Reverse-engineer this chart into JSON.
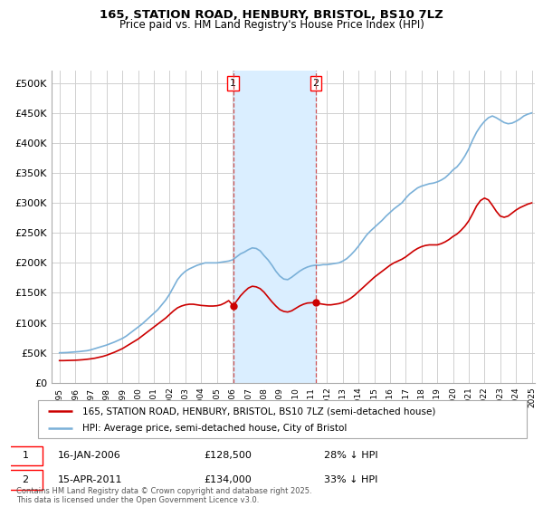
{
  "title": "165, STATION ROAD, HENBURY, BRISTOL, BS10 7LZ",
  "subtitle": "Price paid vs. HM Land Registry's House Price Index (HPI)",
  "ylim": [
    0,
    520000
  ],
  "yticks": [
    0,
    50000,
    100000,
    150000,
    200000,
    250000,
    300000,
    350000,
    400000,
    450000,
    500000
  ],
  "ytick_labels": [
    "£0",
    "£50K",
    "£100K",
    "£150K",
    "£200K",
    "£250K",
    "£300K",
    "£350K",
    "£400K",
    "£450K",
    "£500K"
  ],
  "hpi_color": "#7ab0d8",
  "price_color": "#cc0000",
  "grid_color": "#d0d0d0",
  "shaded_color": "#daeeff",
  "marker1_date": "16-JAN-2006",
  "marker1_price": 128500,
  "marker1_hpi_pct": "28%",
  "marker2_date": "15-APR-2011",
  "marker2_price": 134000,
  "marker2_hpi_pct": "33%",
  "footer": "Contains HM Land Registry data © Crown copyright and database right 2025.\nThis data is licensed under the Open Government Licence v3.0.",
  "legend_line1": "165, STATION ROAD, HENBURY, BRISTOL, BS10 7LZ (semi-detached house)",
  "legend_line2": "HPI: Average price, semi-detached house, City of Bristol",
  "x_start_year": 1995,
  "x_end_year": 2025,
  "hpi_data": [
    [
      1995.0,
      50000
    ],
    [
      1995.25,
      50200
    ],
    [
      1995.5,
      50500
    ],
    [
      1995.75,
      51000
    ],
    [
      1996.0,
      51500
    ],
    [
      1996.25,
      52000
    ],
    [
      1996.5,
      52800
    ],
    [
      1996.75,
      53500
    ],
    [
      1997.0,
      55000
    ],
    [
      1997.25,
      57000
    ],
    [
      1997.5,
      59000
    ],
    [
      1997.75,
      61000
    ],
    [
      1998.0,
      63000
    ],
    [
      1998.25,
      65500
    ],
    [
      1998.5,
      68000
    ],
    [
      1998.75,
      71000
    ],
    [
      1999.0,
      74000
    ],
    [
      1999.25,
      78000
    ],
    [
      1999.5,
      83000
    ],
    [
      1999.75,
      88000
    ],
    [
      2000.0,
      93000
    ],
    [
      2000.25,
      98000
    ],
    [
      2000.5,
      104000
    ],
    [
      2000.75,
      110000
    ],
    [
      2001.0,
      116000
    ],
    [
      2001.25,
      122000
    ],
    [
      2001.5,
      130000
    ],
    [
      2001.75,
      138000
    ],
    [
      2002.0,
      148000
    ],
    [
      2002.25,
      160000
    ],
    [
      2002.5,
      172000
    ],
    [
      2002.75,
      180000
    ],
    [
      2003.0,
      186000
    ],
    [
      2003.25,
      190000
    ],
    [
      2003.5,
      193000
    ],
    [
      2003.75,
      196000
    ],
    [
      2004.0,
      198000
    ],
    [
      2004.25,
      200000
    ],
    [
      2004.5,
      200000
    ],
    [
      2004.75,
      200000
    ],
    [
      2005.0,
      200000
    ],
    [
      2005.25,
      201000
    ],
    [
      2005.5,
      202000
    ],
    [
      2005.75,
      203000
    ],
    [
      2006.0,
      205000
    ],
    [
      2006.25,
      210000
    ],
    [
      2006.5,
      215000
    ],
    [
      2006.75,
      218000
    ],
    [
      2007.0,
      222000
    ],
    [
      2007.25,
      225000
    ],
    [
      2007.5,
      224000
    ],
    [
      2007.75,
      220000
    ],
    [
      2008.0,
      212000
    ],
    [
      2008.25,
      205000
    ],
    [
      2008.5,
      196000
    ],
    [
      2008.75,
      186000
    ],
    [
      2009.0,
      178000
    ],
    [
      2009.25,
      173000
    ],
    [
      2009.5,
      172000
    ],
    [
      2009.75,
      176000
    ],
    [
      2010.0,
      181000
    ],
    [
      2010.25,
      186000
    ],
    [
      2010.5,
      190000
    ],
    [
      2010.75,
      193000
    ],
    [
      2011.0,
      195000
    ],
    [
      2011.25,
      196000
    ],
    [
      2011.5,
      196000
    ],
    [
      2011.75,
      197000
    ],
    [
      2012.0,
      197000
    ],
    [
      2012.25,
      198000
    ],
    [
      2012.5,
      199000
    ],
    [
      2012.75,
      200000
    ],
    [
      2013.0,
      203000
    ],
    [
      2013.25,
      207000
    ],
    [
      2013.5,
      213000
    ],
    [
      2013.75,
      220000
    ],
    [
      2014.0,
      228000
    ],
    [
      2014.25,
      237000
    ],
    [
      2014.5,
      246000
    ],
    [
      2014.75,
      253000
    ],
    [
      2015.0,
      259000
    ],
    [
      2015.25,
      265000
    ],
    [
      2015.5,
      271000
    ],
    [
      2015.75,
      278000
    ],
    [
      2016.0,
      284000
    ],
    [
      2016.25,
      290000
    ],
    [
      2016.5,
      295000
    ],
    [
      2016.75,
      300000
    ],
    [
      2017.0,
      308000
    ],
    [
      2017.25,
      315000
    ],
    [
      2017.5,
      320000
    ],
    [
      2017.75,
      325000
    ],
    [
      2018.0,
      328000
    ],
    [
      2018.25,
      330000
    ],
    [
      2018.5,
      332000
    ],
    [
      2018.75,
      333000
    ],
    [
      2019.0,
      335000
    ],
    [
      2019.25,
      338000
    ],
    [
      2019.5,
      342000
    ],
    [
      2019.75,
      348000
    ],
    [
      2020.0,
      355000
    ],
    [
      2020.25,
      360000
    ],
    [
      2020.5,
      368000
    ],
    [
      2020.75,
      378000
    ],
    [
      2021.0,
      390000
    ],
    [
      2021.25,
      405000
    ],
    [
      2021.5,
      418000
    ],
    [
      2021.75,
      428000
    ],
    [
      2022.0,
      436000
    ],
    [
      2022.25,
      442000
    ],
    [
      2022.5,
      445000
    ],
    [
      2022.75,
      442000
    ],
    [
      2023.0,
      438000
    ],
    [
      2023.25,
      434000
    ],
    [
      2023.5,
      432000
    ],
    [
      2023.75,
      433000
    ],
    [
      2024.0,
      436000
    ],
    [
      2024.25,
      440000
    ],
    [
      2024.5,
      445000
    ],
    [
      2024.75,
      448000
    ],
    [
      2025.0,
      450000
    ]
  ],
  "price_data": [
    [
      1995.0,
      37000
    ],
    [
      1995.25,
      37000
    ],
    [
      1995.5,
      37200
    ],
    [
      1995.75,
      37400
    ],
    [
      1996.0,
      37600
    ],
    [
      1996.25,
      38000
    ],
    [
      1996.5,
      38500
    ],
    [
      1996.75,
      39200
    ],
    [
      1997.0,
      40000
    ],
    [
      1997.25,
      41000
    ],
    [
      1997.5,
      42500
    ],
    [
      1997.75,
      44000
    ],
    [
      1998.0,
      46000
    ],
    [
      1998.25,
      48500
    ],
    [
      1998.5,
      51000
    ],
    [
      1998.75,
      54000
    ],
    [
      1999.0,
      57000
    ],
    [
      1999.25,
      61000
    ],
    [
      1999.5,
      65000
    ],
    [
      1999.75,
      69000
    ],
    [
      2000.0,
      73000
    ],
    [
      2000.25,
      78000
    ],
    [
      2000.5,
      83000
    ],
    [
      2000.75,
      88000
    ],
    [
      2001.0,
      93000
    ],
    [
      2001.25,
      98000
    ],
    [
      2001.5,
      103000
    ],
    [
      2001.75,
      108000
    ],
    [
      2002.0,
      114000
    ],
    [
      2002.25,
      120000
    ],
    [
      2002.5,
      125000
    ],
    [
      2002.75,
      128000
    ],
    [
      2003.0,
      130000
    ],
    [
      2003.25,
      131000
    ],
    [
      2003.5,
      131000
    ],
    [
      2003.75,
      130000
    ],
    [
      2004.0,
      129000
    ],
    [
      2004.25,
      128500
    ],
    [
      2004.5,
      128000
    ],
    [
      2004.75,
      128000
    ],
    [
      2005.0,
      128500
    ],
    [
      2005.25,
      130000
    ],
    [
      2005.5,
      133000
    ],
    [
      2005.75,
      137000
    ],
    [
      2006.04,
      128500
    ],
    [
      2006.5,
      145000
    ],
    [
      2006.75,
      152000
    ],
    [
      2007.0,
      158000
    ],
    [
      2007.25,
      161000
    ],
    [
      2007.5,
      160000
    ],
    [
      2007.75,
      157000
    ],
    [
      2008.0,
      151000
    ],
    [
      2008.25,
      143000
    ],
    [
      2008.5,
      135000
    ],
    [
      2008.75,
      128000
    ],
    [
      2009.0,
      122000
    ],
    [
      2009.25,
      119000
    ],
    [
      2009.5,
      118000
    ],
    [
      2009.75,
      120000
    ],
    [
      2010.0,
      124000
    ],
    [
      2010.25,
      128000
    ],
    [
      2010.5,
      131000
    ],
    [
      2010.75,
      133000
    ],
    [
      2011.29,
      134000
    ],
    [
      2011.5,
      132000
    ],
    [
      2011.75,
      131000
    ],
    [
      2012.0,
      130000
    ],
    [
      2012.25,
      130000
    ],
    [
      2012.5,
      131000
    ],
    [
      2012.75,
      132000
    ],
    [
      2013.0,
      134000
    ],
    [
      2013.25,
      137000
    ],
    [
      2013.5,
      141000
    ],
    [
      2013.75,
      146000
    ],
    [
      2014.0,
      152000
    ],
    [
      2014.25,
      158000
    ],
    [
      2014.5,
      164000
    ],
    [
      2014.75,
      170000
    ],
    [
      2015.0,
      176000
    ],
    [
      2015.25,
      181000
    ],
    [
      2015.5,
      186000
    ],
    [
      2015.75,
      191000
    ],
    [
      2016.0,
      196000
    ],
    [
      2016.25,
      200000
    ],
    [
      2016.5,
      203000
    ],
    [
      2016.75,
      206000
    ],
    [
      2017.0,
      210000
    ],
    [
      2017.25,
      215000
    ],
    [
      2017.5,
      220000
    ],
    [
      2017.75,
      224000
    ],
    [
      2018.0,
      227000
    ],
    [
      2018.25,
      229000
    ],
    [
      2018.5,
      230000
    ],
    [
      2018.75,
      230000
    ],
    [
      2019.0,
      230000
    ],
    [
      2019.25,
      232000
    ],
    [
      2019.5,
      235000
    ],
    [
      2019.75,
      239000
    ],
    [
      2020.0,
      244000
    ],
    [
      2020.25,
      248000
    ],
    [
      2020.5,
      254000
    ],
    [
      2020.75,
      261000
    ],
    [
      2021.0,
      270000
    ],
    [
      2021.25,
      282000
    ],
    [
      2021.5,
      295000
    ],
    [
      2021.75,
      304000
    ],
    [
      2022.0,
      308000
    ],
    [
      2022.25,
      305000
    ],
    [
      2022.5,
      296000
    ],
    [
      2022.75,
      286000
    ],
    [
      2023.0,
      278000
    ],
    [
      2023.25,
      276000
    ],
    [
      2023.5,
      278000
    ],
    [
      2023.75,
      283000
    ],
    [
      2024.0,
      288000
    ],
    [
      2024.25,
      292000
    ],
    [
      2024.5,
      295000
    ],
    [
      2024.75,
      298000
    ],
    [
      2025.0,
      300000
    ]
  ],
  "marker1_x": 2006.04,
  "marker2_x": 2011.29,
  "shaded_region": [
    2006.04,
    2011.29
  ]
}
